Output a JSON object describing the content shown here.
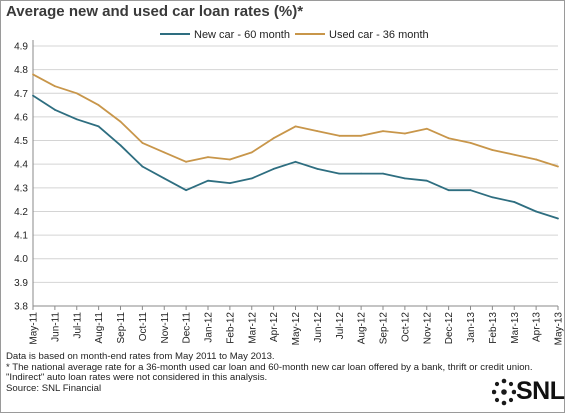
{
  "title": "Average new and used car loan rates (%)*",
  "chart_data": {
    "type": "line",
    "title": "Average new and used car loan rates (%)*",
    "categories": [
      "May-11",
      "Jun-11",
      "Jul-11",
      "Aug-11",
      "Sep-11",
      "Oct-11",
      "Nov-11",
      "Dec-11",
      "Jan-12",
      "Feb-12",
      "Mar-12",
      "Apr-12",
      "May-12",
      "Jun-12",
      "Jul-12",
      "Aug-12",
      "Sep-12",
      "Oct-12",
      "Nov-12",
      "Dec-12",
      "Jan-13",
      "Feb-13",
      "Mar-13",
      "Apr-13",
      "May-13"
    ],
    "series": [
      {
        "name": "New car - 60 month",
        "color": "#2e6e80",
        "values": [
          4.69,
          4.63,
          4.59,
          4.56,
          4.48,
          4.39,
          4.34,
          4.29,
          4.33,
          4.32,
          4.34,
          4.38,
          4.41,
          4.38,
          4.36,
          4.36,
          4.36,
          4.34,
          4.33,
          4.29,
          4.29,
          4.26,
          4.24,
          4.2,
          4.17
        ]
      },
      {
        "name": "Used car - 36 month",
        "color": "#c8964a",
        "values": [
          4.78,
          4.73,
          4.7,
          4.65,
          4.58,
          4.49,
          4.45,
          4.41,
          4.43,
          4.42,
          4.45,
          4.51,
          4.56,
          4.54,
          4.52,
          4.52,
          4.54,
          4.53,
          4.55,
          4.51,
          4.49,
          4.46,
          4.44,
          4.42,
          4.39
        ]
      }
    ],
    "yticks": [
      "4.9",
      "4.8",
      "4.7",
      "4.6",
      "4.5",
      "4.4",
      "4.3",
      "4.2",
      "4.1",
      "4.0",
      "3.9",
      "3.8"
    ],
    "ylim": [
      3.8,
      4.9
    ],
    "legend": "top-center",
    "grid": "horizontal"
  },
  "notes": [
    "Data is based on month-end rates from May 2011 to May 2013.",
    "* The national average rate for a 36-month used car loan and 60-month new car loan offered by a bank, thrift or credit union.",
    "\"Indirect\" auto loan rates were not considered in this analysis.",
    "Source: SNL Financial"
  ],
  "logo": {
    "text": "SNL"
  },
  "colors": {
    "grid": "#d4d4d4",
    "axis": "#8a8a8a"
  }
}
